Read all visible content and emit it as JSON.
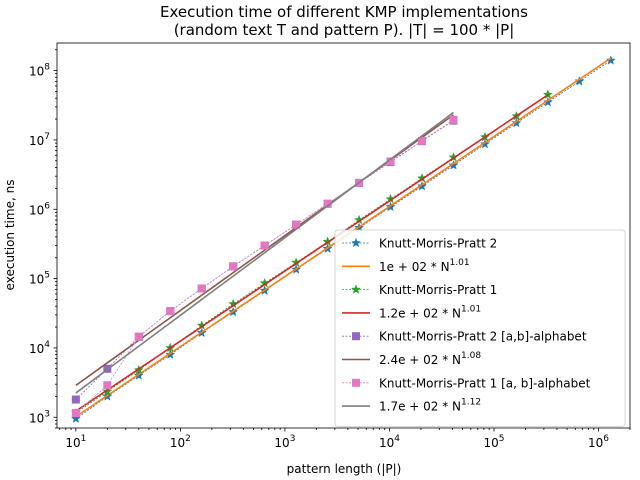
{
  "chart_data": {
    "type": "line",
    "title_line1": "Execution time of different KMP implementations",
    "title_line2": "(random text T and pattern P). |T| = 100 * |P|",
    "xlabel": "pattern length (|P|)",
    "ylabel": "execution time, ns",
    "xscale": "log",
    "yscale": "log",
    "xlim": [
      6.6,
      2000000
    ],
    "ylim": [
      700,
      250000000
    ],
    "xticks": [
      10,
      100,
      1000,
      10000,
      100000,
      1000000
    ],
    "yticks": [
      1000,
      10000,
      100000,
      1000000,
      10000000,
      100000000
    ],
    "legend_position": "lower-right",
    "series": [
      {
        "name": "Knutt-Morris-Pratt 2",
        "kind": "marker-line",
        "marker": "star",
        "color": "#1f77b4",
        "x": [
          10,
          20,
          40,
          80,
          160,
          320,
          640,
          1280,
          2560,
          5120,
          10240,
          20480,
          40960,
          81920,
          163840,
          327680,
          655360,
          1310720
        ],
        "y": [
          950,
          2000,
          4000,
          8000,
          16500,
          33000,
          67000,
          135000,
          270000,
          540000,
          1080000,
          2150000,
          4300000,
          8700000,
          17500000,
          35000000,
          70000000,
          140000000
        ]
      },
      {
        "name": "1e + 02 * N^1.01",
        "legend_main": "1e + 02 * N",
        "legend_exp": "1.01",
        "kind": "fit",
        "color": "#ff7f0e",
        "coef": 100,
        "exp": 1.01,
        "x_range": [
          10,
          1310720
        ]
      },
      {
        "name": "Knutt-Morris-Pratt 1",
        "kind": "marker-line",
        "marker": "star",
        "color": "#2ca02c",
        "x": [
          10,
          20,
          40,
          80,
          160,
          320,
          640,
          1280,
          2560,
          5120,
          10240,
          20480,
          40960,
          81920,
          163840,
          327680
        ],
        "y": [
          1150,
          2350,
          4800,
          10000,
          21000,
          43000,
          86000,
          170000,
          340000,
          700000,
          1400000,
          2800000,
          5600000,
          11000000,
          22000000,
          45000000
        ]
      },
      {
        "name": "1.2e + 02 * N^1.01",
        "legend_main": "1.2e + 02 * N",
        "legend_exp": "1.01",
        "kind": "fit",
        "color": "#d62728",
        "coef": 120,
        "exp": 1.01,
        "x_range": [
          10,
          327680
        ]
      },
      {
        "name": "Knutt-Morris-Pratt 2 [a,b]-alphabet",
        "kind": "marker-line",
        "marker": "square",
        "color": "#9467bd",
        "x": [
          10,
          20,
          40,
          80,
          160,
          320,
          640,
          1280,
          2560,
          5120,
          10240,
          20480,
          40960
        ],
        "y": [
          1800,
          5000,
          14500,
          34000,
          72000,
          150000,
          300000,
          600000,
          1200000,
          2400000,
          4800000,
          9600000,
          19000000
        ]
      },
      {
        "name": "2.4e + 02 * N^1.08",
        "legend_main": "2.4e + 02 * N",
        "legend_exp": "1.08",
        "kind": "fit",
        "color": "#8c564b",
        "coef": 240,
        "exp": 1.08,
        "x_range": [
          10,
          40960
        ]
      },
      {
        "name": "Knutt-Morris-Pratt 1 [a, b]-alphabet",
        "kind": "marker-line",
        "marker": "square",
        "color": "#e377c2",
        "x": [
          10,
          20,
          40,
          80,
          160,
          320,
          640,
          1280,
          2560,
          5120,
          10240,
          20480,
          40960
        ],
        "y": [
          1150,
          2900,
          14500,
          34000,
          72000,
          150000,
          300000,
          600000,
          1200000,
          2400000,
          4900000,
          9700000,
          19500000
        ]
      },
      {
        "name": "1.7e + 02 * N^1.12",
        "legend_main": "1.7e + 02 * N",
        "legend_exp": "1.12",
        "kind": "fit",
        "color": "#7f7f7f",
        "coef": 170,
        "exp": 1.12,
        "x_range": [
          10,
          40960
        ]
      }
    ]
  }
}
